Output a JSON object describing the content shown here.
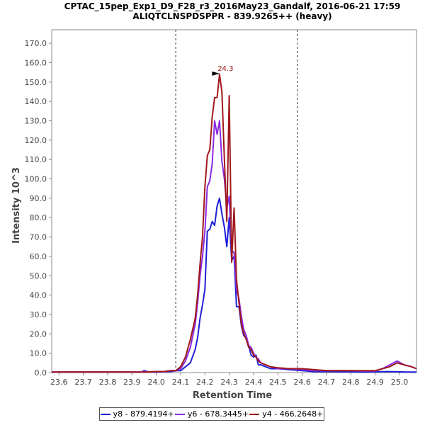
{
  "chart_data": {
    "type": "line",
    "title": "CPTAC_15pep_Exp1_D9_F28_r3_2016May23_Gandalf, 2016-06-21 17:59",
    "subtitle": "ALIQTCLNSPDSPPR - 839.9265++ (heavy)",
    "xlabel": "Retention Time",
    "ylabel": "Intensity 10^3",
    "xlim": [
      23.57,
      25.07
    ],
    "ylim": [
      0,
      177
    ],
    "x_ticks": [
      "23.6",
      "23.7",
      "23.8",
      "23.9",
      "24.0",
      "24.1",
      "24.2",
      "24.3",
      "24.4",
      "24.5",
      "24.6",
      "24.7",
      "24.8",
      "24.9",
      "25.0"
    ],
    "y_ticks": [
      "0.0",
      "10.0",
      "20.0",
      "30.0",
      "40.0",
      "50.0",
      "60.0",
      "70.0",
      "80.0",
      "90.0",
      "100.0",
      "110.0",
      "120.0",
      "130.0",
      "140.0",
      "150.0",
      "160.0",
      "170.0"
    ],
    "integration_boundaries": [
      24.08,
      24.58
    ],
    "peak_annotation": {
      "x": 24.27,
      "y": 154,
      "label": "24.3",
      "color": "#a0181c"
    },
    "series": [
      {
        "name": "y8 - 879.4194+",
        "color": "#1f1fd6",
        "x": [
          23.57,
          23.7,
          23.8,
          23.94,
          23.95,
          23.97,
          24.0,
          24.03,
          24.06,
          24.08,
          24.1,
          24.12,
          24.14,
          24.16,
          24.17,
          24.18,
          24.19,
          24.2,
          24.21,
          24.22,
          24.23,
          24.24,
          24.25,
          24.26,
          24.27,
          24.28,
          24.29,
          24.3,
          24.31,
          24.32,
          24.33,
          24.34,
          24.35,
          24.36,
          24.37,
          24.38,
          24.39,
          24.4,
          24.41,
          24.42,
          24.43,
          24.45,
          24.47,
          24.5,
          24.55,
          24.6,
          24.65,
          24.7,
          24.75,
          24.8,
          24.85,
          24.9,
          24.95,
          25.0,
          25.03,
          25.07
        ],
        "y": [
          0.3,
          0.3,
          0.3,
          0.3,
          1,
          0.3,
          0.3,
          0.5,
          0.5,
          1,
          1,
          3,
          5,
          12,
          18,
          28,
          35,
          43,
          73,
          74,
          78,
          76,
          86,
          90,
          82,
          75,
          65,
          80,
          58,
          60,
          34,
          34,
          24,
          19,
          18,
          14,
          9,
          8,
          9,
          4,
          4,
          3,
          2,
          2,
          1.5,
          1,
          0.5,
          0.5,
          0.4,
          0.4,
          0.3,
          0.4,
          0.5,
          0.4,
          0.3,
          0.3
        ]
      },
      {
        "name": "y6 - 678.3445+",
        "color": "#8a2be2",
        "x": [
          23.57,
          23.8,
          23.95,
          24.0,
          24.03,
          24.06,
          24.08,
          24.1,
          24.12,
          24.14,
          24.16,
          24.17,
          24.18,
          24.19,
          24.2,
          24.21,
          24.22,
          24.23,
          24.24,
          24.25,
          24.26,
          24.27,
          24.28,
          24.29,
          24.3,
          24.31,
          24.32,
          24.33,
          24.34,
          24.35,
          24.36,
          24.37,
          24.38,
          24.39,
          24.4,
          24.41,
          24.42,
          24.43,
          24.45,
          24.47,
          24.5,
          24.55,
          24.6,
          24.65,
          24.7,
          24.75,
          24.8,
          24.85,
          24.9,
          24.93,
          24.96,
          24.99,
          25.02,
          25.05,
          25.07
        ],
        "y": [
          0.3,
          0.3,
          0.3,
          0.5,
          0.5,
          1,
          1,
          2,
          6,
          13,
          25,
          36,
          50,
          60,
          73,
          96,
          99,
          108,
          130,
          123,
          130,
          109,
          100,
          85,
          91,
          63,
          62,
          43,
          38,
          29,
          22,
          19,
          14,
          13,
          10,
          8,
          7,
          5,
          4,
          3,
          2,
          2,
          1.5,
          1,
          1,
          1,
          1,
          0.8,
          0.8,
          2,
          4,
          6,
          4,
          3,
          2
        ]
      },
      {
        "name": "y4 - 466.2648+",
        "color": "#a0181c",
        "x": [
          23.57,
          23.8,
          23.95,
          24.0,
          24.03,
          24.06,
          24.08,
          24.1,
          24.12,
          24.14,
          24.16,
          24.17,
          24.18,
          24.19,
          24.2,
          24.21,
          24.22,
          24.23,
          24.24,
          24.25,
          24.26,
          24.27,
          24.28,
          24.29,
          24.3,
          24.31,
          24.32,
          24.33,
          24.34,
          24.35,
          24.36,
          24.37,
          24.38,
          24.39,
          24.4,
          24.41,
          24.42,
          24.43,
          24.45,
          24.47,
          24.5,
          24.55,
          24.6,
          24.65,
          24.7,
          24.75,
          24.8,
          24.85,
          24.9,
          24.93,
          24.96,
          24.99,
          25.02,
          25.05,
          25.07
        ],
        "y": [
          0.3,
          0.3,
          0.3,
          0.5,
          0.5,
          1,
          1,
          3,
          8,
          17,
          28,
          40,
          56,
          70,
          96,
          112,
          115,
          132,
          142,
          142,
          154,
          145,
          110,
          78,
          143,
          57,
          85,
          48,
          36,
          25,
          20,
          17,
          13,
          12,
          9,
          8,
          6,
          5,
          4,
          3,
          2.5,
          2,
          2,
          1.5,
          1,
          1,
          1,
          1,
          1,
          2,
          3,
          5,
          4,
          3,
          2
        ]
      }
    ],
    "legend_position": "bottom-center"
  }
}
